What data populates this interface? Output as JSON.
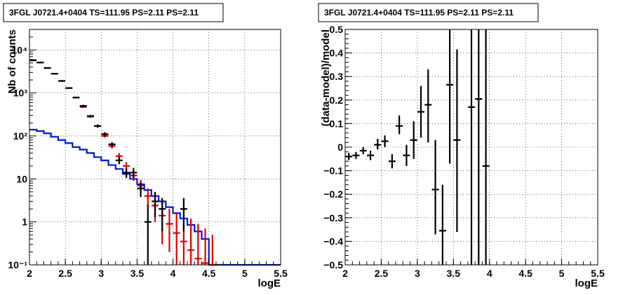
{
  "chart_data": [
    {
      "type": "scatter",
      "title": "3FGL J0721.4+0404 TS=111.95 PS=2.11 PS=2.11",
      "xlabel": "logE",
      "ylabel": "Nb of counts",
      "xlim": [
        2,
        5.5
      ],
      "ylim": [
        0.1,
        30000
      ],
      "log_y": true,
      "grid": true,
      "xticks": [
        2,
        2.5,
        3,
        3.5,
        4,
        4.5,
        5,
        5.5
      ],
      "xtick_labels": [
        "2",
        "2.5",
        "3",
        "3.5",
        "4",
        "4.5",
        "5",
        "5.5"
      ],
      "yticks": [
        0.1,
        1,
        10,
        100,
        1000,
        10000
      ],
      "ytick_labels": [
        "10⁻¹",
        "1",
        "10",
        "10²",
        "10³",
        "10⁴"
      ],
      "series": [
        {
          "color": "#000000",
          "kind": "points",
          "points": [
            {
              "x": 2.05,
              "y": 5800,
              "lo": 5650,
              "hi": 5950
            },
            {
              "x": 2.15,
              "y": 5100,
              "lo": 4960,
              "hi": 5240
            },
            {
              "x": 2.25,
              "y": 3800,
              "lo": 3680,
              "hi": 3920
            },
            {
              "x": 2.35,
              "y": 2800,
              "lo": 2700,
              "hi": 2900
            },
            {
              "x": 2.45,
              "y": 1900,
              "lo": 1820,
              "hi": 1980
            },
            {
              "x": 2.55,
              "y": 1300,
              "lo": 1240,
              "hi": 1360
            },
            {
              "x": 2.65,
              "y": 780,
              "lo": 740,
              "hi": 820
            },
            {
              "x": 2.75,
              "y": 500,
              "lo": 470,
              "hi": 530
            },
            {
              "x": 2.85,
              "y": 290,
              "lo": 270,
              "hi": 310
            },
            {
              "x": 2.95,
              "y": 170,
              "lo": 155,
              "hi": 185
            },
            {
              "x": 3.05,
              "y": 110,
              "lo": 98,
              "hi": 122
            },
            {
              "x": 3.15,
              "y": 64,
              "lo": 56,
              "hi": 72
            },
            {
              "x": 3.25,
              "y": 27,
              "lo": 22,
              "hi": 32
            },
            {
              "x": 3.35,
              "y": 14,
              "lo": 10.5,
              "hi": 18
            },
            {
              "x": 3.45,
              "y": 14,
              "lo": 10.5,
              "hi": 18
            },
            {
              "x": 3.55,
              "y": 6,
              "lo": 3.8,
              "hi": 8.5
            },
            {
              "x": 3.65,
              "y": 1,
              "lo": 0.1,
              "hi": 2.5
            },
            {
              "x": 3.75,
              "y": 3,
              "lo": 1.3,
              "hi": 5
            },
            {
              "x": 3.85,
              "y": 2,
              "lo": 0.6,
              "hi": 3.6
            },
            {
              "x": 4.15,
              "y": 2,
              "lo": 0.6,
              "hi": 3.6
            }
          ]
        },
        {
          "color": "#dd0000",
          "kind": "model",
          "points": [
            {
              "x": 2.05,
              "y": 5700,
              "lo": 5630,
              "hi": 5770
            },
            {
              "x": 2.15,
              "y": 5100,
              "lo": 5030,
              "hi": 5170
            },
            {
              "x": 2.25,
              "y": 3800,
              "lo": 3740,
              "hi": 3860
            },
            {
              "x": 2.35,
              "y": 2800,
              "lo": 2750,
              "hi": 2850
            },
            {
              "x": 2.45,
              "y": 1900,
              "lo": 1860,
              "hi": 1940
            },
            {
              "x": 2.55,
              "y": 1300,
              "lo": 1270,
              "hi": 1330
            },
            {
              "x": 2.65,
              "y": 780,
              "lo": 760,
              "hi": 800
            },
            {
              "x": 2.75,
              "y": 470,
              "lo": 450,
              "hi": 490
            },
            {
              "x": 2.85,
              "y": 280,
              "lo": 265,
              "hi": 295
            },
            {
              "x": 2.95,
              "y": 170,
              "lo": 158,
              "hi": 182
            },
            {
              "x": 3.05,
              "y": 100,
              "lo": 91,
              "hi": 109
            },
            {
              "x": 3.15,
              "y": 58,
              "lo": 51,
              "hi": 65
            },
            {
              "x": 3.25,
              "y": 34,
              "lo": 29,
              "hi": 40
            },
            {
              "x": 3.35,
              "y": 20,
              "lo": 16,
              "hi": 24.5
            },
            {
              "x": 3.45,
              "y": 12,
              "lo": 9,
              "hi": 15.5
            },
            {
              "x": 3.55,
              "y": 7,
              "lo": 4.6,
              "hi": 9.5
            },
            {
              "x": 3.65,
              "y": 4,
              "lo": 2.2,
              "hi": 6
            },
            {
              "x": 3.75,
              "y": 2.4,
              "lo": 1,
              "hi": 4
            },
            {
              "x": 3.85,
              "y": 1.4,
              "lo": 0.3,
              "hi": 2.8
            },
            {
              "x": 3.95,
              "y": 0.9,
              "lo": 0.2,
              "hi": 2
            },
            {
              "x": 4.05,
              "y": 0.55,
              "lo": 0.1,
              "hi": 1.6
            },
            {
              "x": 4.15,
              "y": 0.35,
              "lo": 0.1,
              "hi": 1.4
            },
            {
              "x": 4.25,
              "y": 0.22,
              "lo": 0.1,
              "hi": 1.2
            },
            {
              "x": 4.35,
              "y": 0.14,
              "lo": 0.1,
              "hi": 0.9
            },
            {
              "x": 4.45,
              "y": 0.11,
              "lo": 0.1,
              "hi": 0.7
            },
            {
              "x": 4.55,
              "y": 0.1,
              "lo": 0.1,
              "hi": 0.5
            }
          ]
        },
        {
          "color": "#0018dd",
          "kind": "histogram",
          "bin_edges": [
            2.0,
            2.1,
            2.2,
            2.3,
            2.4,
            2.5,
            2.6,
            2.7,
            2.8,
            2.9,
            3.0,
            3.1,
            3.2,
            3.3,
            3.4,
            3.5,
            3.6,
            3.7,
            3.8,
            3.9,
            4.0,
            4.1,
            4.2,
            4.3,
            4.4,
            4.5,
            4.6,
            5.5
          ],
          "values": [
            140,
            130,
            115,
            95,
            80,
            68,
            55,
            48,
            40,
            32,
            27,
            21,
            17,
            13,
            10,
            7.5,
            5.5,
            4,
            3,
            2.2,
            1.6,
            1.2,
            0.85,
            0.6,
            0.4,
            0.1,
            0.1
          ]
        }
      ]
    },
    {
      "type": "scatter",
      "title": "3FGL J0721.4+0404 TS=111.95 PS=2.11 PS=2.11",
      "xlabel": "logE",
      "ylabel": "(data-model)/model",
      "xlim": [
        2,
        5.5
      ],
      "ylim": [
        -0.5,
        0.5
      ],
      "grid": true,
      "xticks": [
        2,
        2.5,
        3,
        3.5,
        4,
        4.5,
        5,
        5.5
      ],
      "xtick_labels": [
        "2",
        "2.5",
        "3",
        "3.5",
        "4",
        "4.5",
        "5",
        "5.5"
      ],
      "yticks": [
        -0.5,
        -0.4,
        -0.3,
        -0.2,
        -0.1,
        0,
        0.1,
        0.2,
        0.3,
        0.4,
        0.5
      ],
      "ytick_labels": [
        "−0.5",
        "−0.4",
        "−0.3",
        "−0.2",
        "−0.1",
        "0",
        "0.1",
        "0.2",
        "0.3",
        "0.4",
        "0.5"
      ],
      "series": [
        {
          "color": "#000000",
          "kind": "points",
          "points": [
            {
              "x": 2.05,
              "y": -0.04,
              "lo": -0.055,
              "hi": -0.025
            },
            {
              "x": 2.15,
              "y": -0.035,
              "lo": -0.05,
              "hi": -0.02
            },
            {
              "x": 2.25,
              "y": -0.015,
              "lo": -0.03,
              "hi": 0.0
            },
            {
              "x": 2.35,
              "y": -0.035,
              "lo": -0.055,
              "hi": -0.015
            },
            {
              "x": 2.45,
              "y": 0.01,
              "lo": -0.01,
              "hi": 0.035
            },
            {
              "x": 2.55,
              "y": 0.025,
              "lo": 0.0,
              "hi": 0.05
            },
            {
              "x": 2.65,
              "y": -0.06,
              "lo": -0.09,
              "hi": -0.03
            },
            {
              "x": 2.75,
              "y": 0.09,
              "lo": 0.055,
              "hi": 0.135
            },
            {
              "x": 2.85,
              "y": -0.035,
              "lo": -0.08,
              "hi": 0.01
            },
            {
              "x": 2.95,
              "y": 0.03,
              "lo": -0.05,
              "hi": 0.11
            },
            {
              "x": 3.05,
              "y": 0.15,
              "lo": 0.04,
              "hi": 0.26
            },
            {
              "x": 3.15,
              "y": 0.18,
              "lo": 0.02,
              "hi": 0.33
            },
            {
              "x": 3.25,
              "y": -0.18,
              "lo": -0.37,
              "hi": 0.03
            },
            {
              "x": 3.35,
              "y": -0.355,
              "lo": -0.5,
              "hi": -0.16
            },
            {
              "x": 3.45,
              "y": 0.265,
              "lo": -0.07,
              "hi": 0.5
            },
            {
              "x": 3.55,
              "y": 0.03,
              "lo": -0.36,
              "hi": 0.415
            },
            {
              "x": 3.75,
              "y": 0.17,
              "lo": -0.5,
              "hi": 0.5
            },
            {
              "x": 3.85,
              "y": 0.205,
              "lo": -0.5,
              "hi": 0.5
            },
            {
              "x": 3.95,
              "y": -0.08,
              "lo": -0.5,
              "hi": 0.5
            }
          ]
        }
      ]
    }
  ]
}
